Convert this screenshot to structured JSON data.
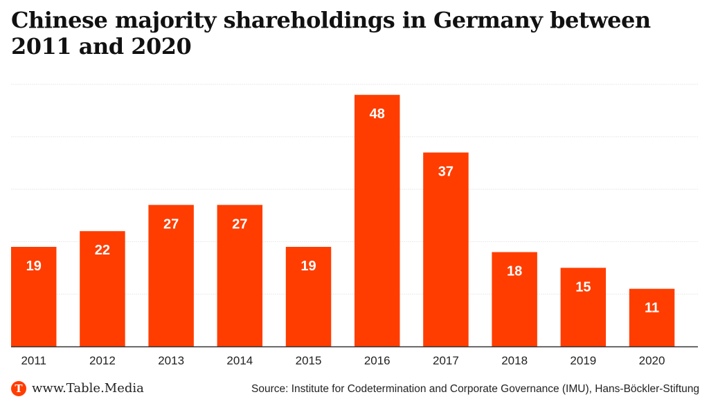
{
  "chart_data": {
    "type": "bar",
    "title": "Chinese majority shareholdings in Germany between 2011 and 2020",
    "categories": [
      "2011",
      "2012",
      "2013",
      "2014",
      "2015",
      "2016",
      "2017",
      "2018",
      "2019",
      "2020"
    ],
    "values": [
      19,
      22,
      27,
      27,
      19,
      48,
      37,
      18,
      15,
      11
    ],
    "xlabel": "",
    "ylabel": "",
    "ylim": [
      0,
      50
    ],
    "gridlines": [
      10,
      20,
      30,
      40,
      50
    ],
    "grid": true,
    "legend": "none",
    "data_labels": "inside-top",
    "bar_color": "#ff3d00",
    "label_color": "#ffffff"
  },
  "footer": {
    "logo_letter": "T",
    "site": "www.Table.Media",
    "source": "Source: Institute for Codetermination and Corporate Governance (IMU), Hans-Böckler-Stiftung"
  }
}
